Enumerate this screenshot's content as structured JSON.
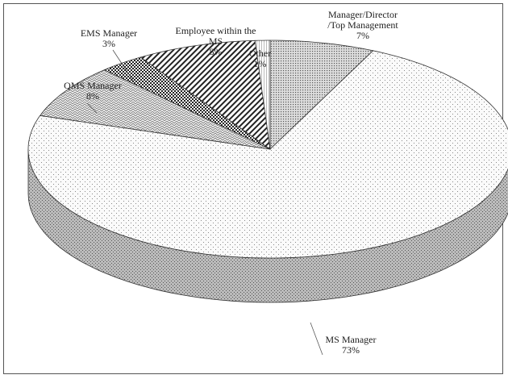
{
  "chart_data": {
    "type": "pie3d",
    "categories": [
      "Manager/Director /Top Management",
      "MS Manager",
      "QMS Manager",
      "EMS Manager",
      "Employee within the MS",
      "Other"
    ],
    "values": [
      7,
      73,
      8,
      3,
      8,
      1
    ],
    "value_labels": [
      "7%",
      "73%",
      "8%",
      "3%",
      "8%",
      "1%"
    ]
  }
}
